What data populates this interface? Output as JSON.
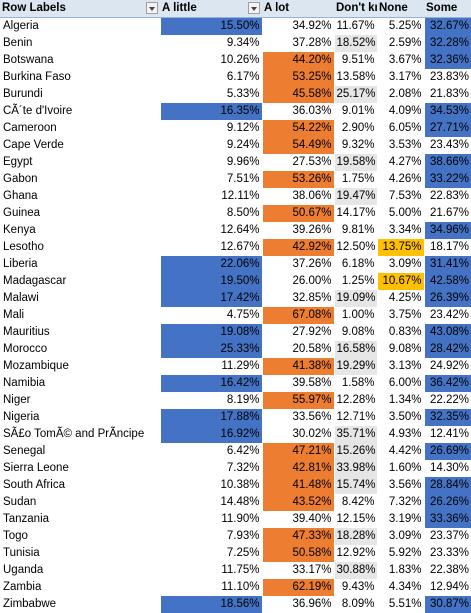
{
  "headers": {
    "row_labels": "Row Labels",
    "a_little": "A little",
    "a_lot": "A lot",
    "dont_know": "Don't know",
    "none": "None",
    "some": "Some"
  },
  "highlight_colors": {
    "blue": "#4472c4",
    "orange": "#ed7d31",
    "gray": "#e7e6e6",
    "yellow": "#ffc000",
    "header": "#dce6f1"
  },
  "rows": [
    {
      "label": "Algeria",
      "values": [
        "15.50%",
        "34.92%",
        "11.67%",
        "5.25%",
        "32.67%"
      ],
      "hl": [
        "b",
        "",
        "",
        "",
        "b"
      ]
    },
    {
      "label": "Benin",
      "values": [
        "9.34%",
        "37.28%",
        "18.52%",
        "2.59%",
        "32.28%"
      ],
      "hl": [
        "",
        "",
        "g",
        "",
        "b"
      ]
    },
    {
      "label": "Botswana",
      "values": [
        "10.26%",
        "44.20%",
        "9.51%",
        "3.67%",
        "32.36%"
      ],
      "hl": [
        "",
        "o",
        "",
        "",
        "b"
      ]
    },
    {
      "label": "Burkina Faso",
      "values": [
        "6.17%",
        "53.25%",
        "13.58%",
        "3.17%",
        "23.83%"
      ],
      "hl": [
        "",
        "o",
        "",
        "",
        ""
      ]
    },
    {
      "label": "Burundi",
      "values": [
        "5.33%",
        "45.58%",
        "25.17%",
        "2.08%",
        "21.83%"
      ],
      "hl": [
        "",
        "o",
        "g",
        "",
        ""
      ]
    },
    {
      "label": "CÃ´te d'Ivoire",
      "values": [
        "16.35%",
        "36.03%",
        "9.01%",
        "4.09%",
        "34.53%"
      ],
      "hl": [
        "b",
        "",
        "",
        "",
        "b"
      ]
    },
    {
      "label": "Cameroon",
      "values": [
        "9.12%",
        "54.22%",
        "2.90%",
        "6.05%",
        "27.71%"
      ],
      "hl": [
        "",
        "o",
        "",
        "",
        "b"
      ]
    },
    {
      "label": "Cape Verde",
      "values": [
        "9.24%",
        "54.49%",
        "9.32%",
        "3.53%",
        "23.43%"
      ],
      "hl": [
        "",
        "o",
        "",
        "",
        ""
      ]
    },
    {
      "label": "Egypt",
      "values": [
        "9.96%",
        "27.53%",
        "19.58%",
        "4.27%",
        "38.66%"
      ],
      "hl": [
        "",
        "",
        "g",
        "",
        "b"
      ]
    },
    {
      "label": "Gabon",
      "values": [
        "7.51%",
        "53.26%",
        "1.75%",
        "4.26%",
        "33.22%"
      ],
      "hl": [
        "",
        "o",
        "",
        "",
        "b"
      ]
    },
    {
      "label": "Ghana",
      "values": [
        "12.11%",
        "38.06%",
        "19.47%",
        "7.53%",
        "22.83%"
      ],
      "hl": [
        "",
        "",
        "g",
        "",
        ""
      ]
    },
    {
      "label": "Guinea",
      "values": [
        "8.50%",
        "50.67%",
        "14.17%",
        "5.00%",
        "21.67%"
      ],
      "hl": [
        "",
        "o",
        "",
        "",
        ""
      ]
    },
    {
      "label": "Kenya",
      "values": [
        "12.64%",
        "39.26%",
        "9.81%",
        "3.34%",
        "34.96%"
      ],
      "hl": [
        "",
        "",
        "",
        "",
        "b"
      ]
    },
    {
      "label": "Lesotho",
      "values": [
        "12.67%",
        "42.92%",
        "12.50%",
        "13.75%",
        "18.17%"
      ],
      "hl": [
        "",
        "o",
        "",
        "y",
        ""
      ]
    },
    {
      "label": "Liberia",
      "values": [
        "22.06%",
        "37.26%",
        "6.18%",
        "3.09%",
        "31.41%"
      ],
      "hl": [
        "b",
        "",
        "",
        "",
        "b"
      ]
    },
    {
      "label": "Madagascar",
      "values": [
        "19.50%",
        "26.00%",
        "1.25%",
        "10.67%",
        "42.58%"
      ],
      "hl": [
        "b",
        "",
        "",
        "y",
        "b"
      ]
    },
    {
      "label": "Malawi",
      "values": [
        "17.42%",
        "32.85%",
        "19.09%",
        "4.25%",
        "26.39%"
      ],
      "hl": [
        "b",
        "",
        "g",
        "",
        "b"
      ]
    },
    {
      "label": "Mali",
      "values": [
        "4.75%",
        "67.08%",
        "1.00%",
        "3.75%",
        "23.42%"
      ],
      "hl": [
        "",
        "o",
        "",
        "",
        ""
      ]
    },
    {
      "label": "Mauritius",
      "values": [
        "19.08%",
        "27.92%",
        "9.08%",
        "0.83%",
        "43.08%"
      ],
      "hl": [
        "b",
        "",
        "",
        "",
        "b"
      ]
    },
    {
      "label": "Morocco",
      "values": [
        "25.33%",
        "20.58%",
        "16.58%",
        "9.08%",
        "28.42%"
      ],
      "hl": [
        "b",
        "",
        "g",
        "",
        "b"
      ]
    },
    {
      "label": "Mozambique",
      "values": [
        "11.29%",
        "41.38%",
        "19.29%",
        "3.13%",
        "24.92%"
      ],
      "hl": [
        "",
        "o",
        "g",
        "",
        ""
      ]
    },
    {
      "label": "Namibia",
      "values": [
        "16.42%",
        "39.58%",
        "1.58%",
        "6.00%",
        "36.42%"
      ],
      "hl": [
        "b",
        "",
        "",
        "",
        "b"
      ]
    },
    {
      "label": "Niger",
      "values": [
        "8.19%",
        "55.97%",
        "12.28%",
        "1.34%",
        "22.22%"
      ],
      "hl": [
        "",
        "o",
        "",
        "",
        ""
      ]
    },
    {
      "label": "Nigeria",
      "values": [
        "17.88%",
        "33.56%",
        "12.71%",
        "3.50%",
        "32.35%"
      ],
      "hl": [
        "b",
        "",
        "",
        "",
        "b"
      ]
    },
    {
      "label": "SÃ£o TomÃ© and PrÃ­ncipe",
      "values": [
        "16.92%",
        "30.02%",
        "35.71%",
        "4.93%",
        "12.41%"
      ],
      "hl": [
        "b",
        "",
        "g",
        "",
        ""
      ]
    },
    {
      "label": "Senegal",
      "values": [
        "6.42%",
        "47.21%",
        "15.26%",
        "4.42%",
        "26.69%"
      ],
      "hl": [
        "",
        "o",
        "g",
        "",
        "b"
      ]
    },
    {
      "label": "Sierra Leone",
      "values": [
        "7.32%",
        "42.81%",
        "33.98%",
        "1.60%",
        "14.30%"
      ],
      "hl": [
        "",
        "o",
        "g",
        "",
        ""
      ]
    },
    {
      "label": "South Africa",
      "values": [
        "10.38%",
        "41.48%",
        "15.74%",
        "3.56%",
        "28.84%"
      ],
      "hl": [
        "",
        "o",
        "g",
        "",
        "b"
      ]
    },
    {
      "label": "Sudan",
      "values": [
        "14.48%",
        "43.52%",
        "8.42%",
        "7.32%",
        "26.26%"
      ],
      "hl": [
        "",
        "o",
        "",
        "",
        "b"
      ]
    },
    {
      "label": "Tanzania",
      "values": [
        "11.90%",
        "39.40%",
        "12.15%",
        "3.19%",
        "33.36%"
      ],
      "hl": [
        "",
        "",
        "",
        "",
        "b"
      ]
    },
    {
      "label": "Togo",
      "values": [
        "7.93%",
        "47.33%",
        "18.28%",
        "3.09%",
        "23.37%"
      ],
      "hl": [
        "",
        "o",
        "g",
        "",
        ""
      ]
    },
    {
      "label": "Tunisia",
      "values": [
        "7.25%",
        "50.58%",
        "12.92%",
        "5.92%",
        "23.33%"
      ],
      "hl": [
        "",
        "o",
        "",
        "",
        ""
      ]
    },
    {
      "label": "Uganda",
      "values": [
        "11.75%",
        "33.17%",
        "30.88%",
        "1.83%",
        "22.38%"
      ],
      "hl": [
        "",
        "",
        "g",
        "",
        ""
      ]
    },
    {
      "label": "Zambia",
      "values": [
        "11.10%",
        "62.19%",
        "9.43%",
        "4.34%",
        "12.94%"
      ],
      "hl": [
        "",
        "o",
        "",
        "",
        ""
      ]
    },
    {
      "label": "Zimbabwe",
      "values": [
        "18.56%",
        "36.96%",
        "8.09%",
        "5.51%",
        "30.87%"
      ],
      "hl": [
        "b",
        "",
        "",
        "",
        "b"
      ]
    }
  ]
}
